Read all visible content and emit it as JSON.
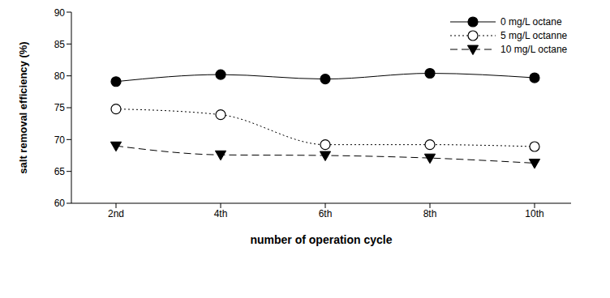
{
  "chart_data": {
    "type": "line",
    "x_label": "number of operation cycle",
    "y_label": "salt removal efficiency (%)",
    "categories": [
      "2nd",
      "4th",
      "6th",
      "8th",
      "10th"
    ],
    "ylim": [
      60,
      90
    ],
    "yticks": [
      60,
      65,
      70,
      75,
      80,
      85,
      90
    ],
    "grid": false,
    "legend": "upper right",
    "series": [
      {
        "name": "0 mg/L octane",
        "color": "#000000",
        "marker": "filled_circle",
        "line_style": "solid",
        "values": [
          79.1,
          80.2,
          79.5,
          80.4,
          79.7
        ]
      },
      {
        "name": "5 mg/L octanne",
        "color": "#000000",
        "marker": "open_circle",
        "line_style": "dotted",
        "values": [
          74.8,
          73.9,
          69.2,
          69.2,
          68.9
        ]
      },
      {
        "name": "10 mg/L octane",
        "color": "#000000",
        "marker": "triangle_down",
        "line_style": "dashed",
        "values": [
          69.0,
          67.6,
          67.5,
          67.1,
          66.3
        ]
      }
    ]
  }
}
